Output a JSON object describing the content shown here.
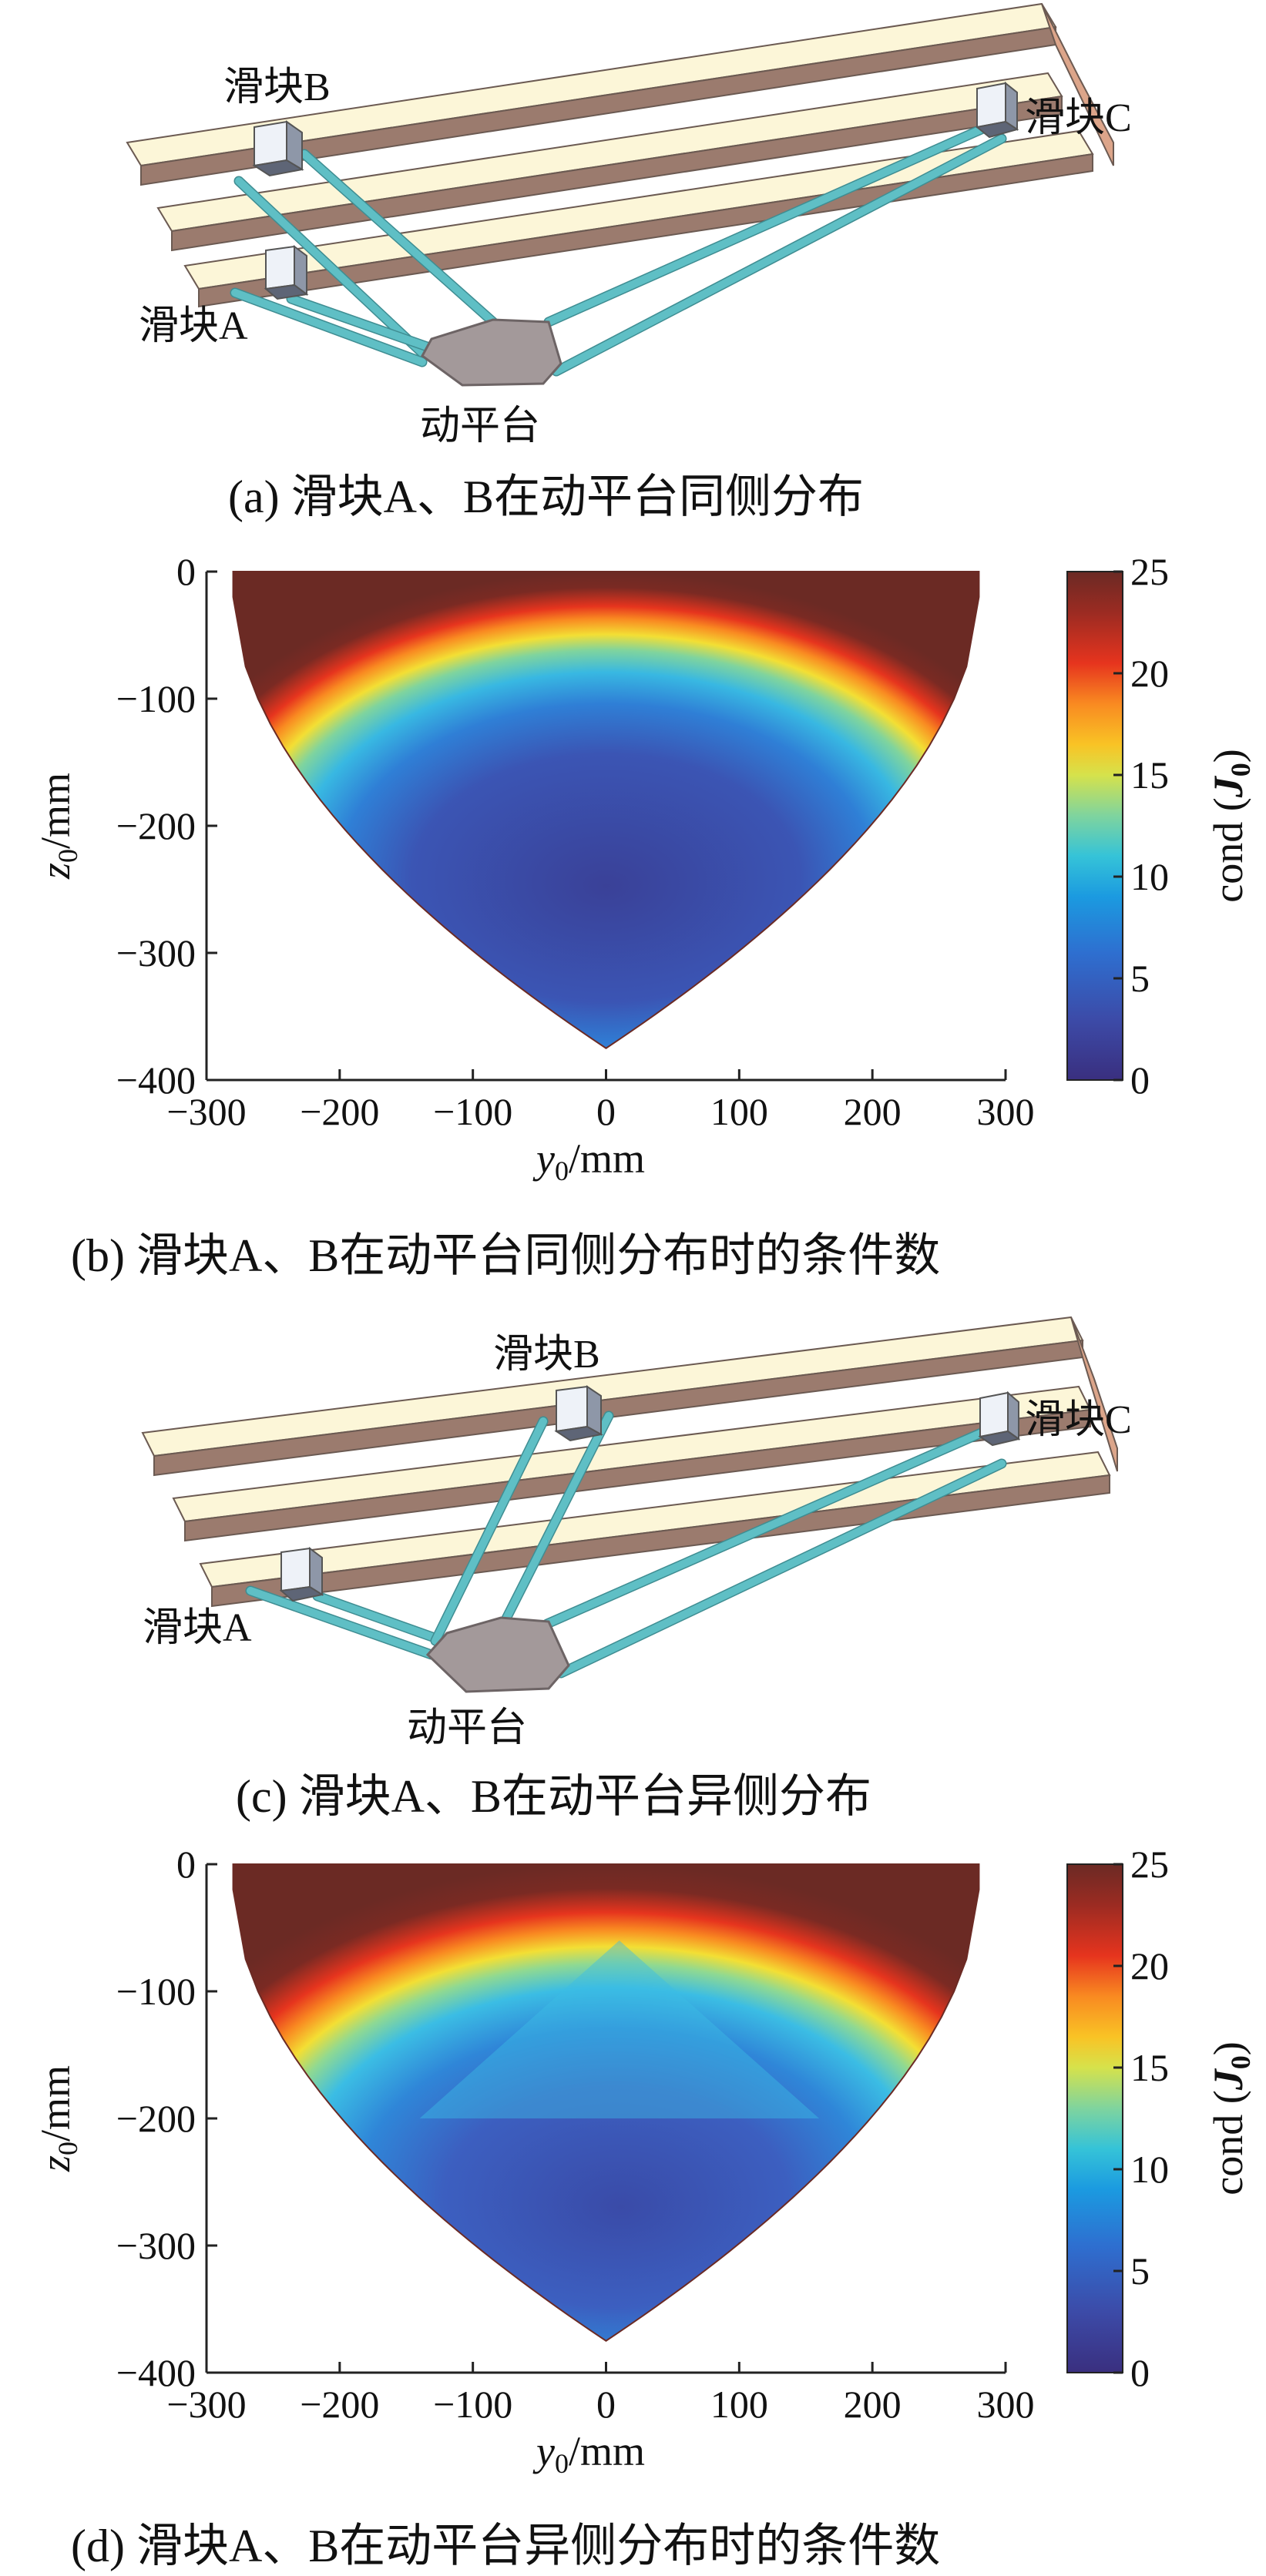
{
  "colors": {
    "rail_top": "#fcf6d8",
    "rail_side": "#9b7b6e",
    "rod": "#5fbfc5",
    "platform": "#a3999a",
    "slider": "#e8eef6",
    "cmap": [
      "#3a2f7f",
      "#3c4ba8",
      "#2e6fd0",
      "#1b9ae0",
      "#35c3d8",
      "#7fd49e",
      "#d6e24b",
      "#f9c325",
      "#f98a21",
      "#e6341e",
      "#9b2b22",
      "#6b2a24"
    ]
  },
  "panels": [
    {
      "id": "a",
      "caption": "(a) 滑块A、B在动平台同侧分布",
      "labels": {
        "slider_a": "滑块A",
        "slider_b": "滑块B",
        "slider_c": "滑块C",
        "platform": "动平台"
      }
    },
    {
      "id": "b",
      "caption": "(b) 滑块A、B在动平台同侧分布时的条件数",
      "chart_data": {
        "type": "heatmap",
        "xlabel_italic": "y",
        "xlabel_sub": "0",
        "xlabel_rest": "/mm",
        "ylabel_italic": "z",
        "ylabel_sub": "0",
        "ylabel_rest": "/mm",
        "xlim": [
          -300,
          300
        ],
        "ylim": [
          -400,
          0
        ],
        "xticks": [
          "−300",
          "−200",
          "−100",
          "0",
          "100",
          "200",
          "300"
        ],
        "yticks": [
          "0",
          "−100",
          "−200",
          "−300",
          "−400"
        ],
        "colorbar": {
          "min": 0,
          "max": 25,
          "ticks": [
            "0",
            "5",
            "10",
            "15",
            "20",
            "25"
          ],
          "label_prefix": "cond (",
          "label_bold": "J",
          "label_sub": "0",
          "label_suffix": ")"
        },
        "workspace_boundary": {
          "y_half_width_at_top": 280,
          "z_bottom": -375
        },
        "low_region_center": {
          "y": 0,
          "z": -250,
          "cond": 4
        }
      }
    },
    {
      "id": "c",
      "caption": "(c) 滑块A、B在动平台异侧分布",
      "labels": {
        "slider_a": "滑块A",
        "slider_b": "滑块B",
        "slider_c": "滑块C",
        "platform": "动平台"
      }
    },
    {
      "id": "d",
      "caption": "(d) 滑块A、B在动平台异侧分布时的条件数",
      "chart_data": {
        "type": "heatmap",
        "xlabel_italic": "y",
        "xlabel_sub": "0",
        "xlabel_rest": "/mm",
        "ylabel_italic": "z",
        "ylabel_sub": "0",
        "ylabel_rest": "/mm",
        "xlim": [
          -300,
          300
        ],
        "ylim": [
          -400,
          0
        ],
        "xticks": [
          "−300",
          "−200",
          "−100",
          "0",
          "100",
          "200",
          "300"
        ],
        "yticks": [
          "0",
          "−100",
          "−200",
          "−300",
          "−400"
        ],
        "colorbar": {
          "min": 0,
          "max": 25,
          "ticks": [
            "0",
            "5",
            "10",
            "15",
            "20",
            "25"
          ],
          "label_prefix": "cond (",
          "label_bold": "J",
          "label_sub": "0",
          "label_suffix": ")"
        },
        "workspace_boundary": {
          "y_half_width_at_top": 280,
          "z_bottom": -375
        },
        "low_region_center": {
          "y": 10,
          "z": -270,
          "cond": 5
        }
      }
    }
  ]
}
